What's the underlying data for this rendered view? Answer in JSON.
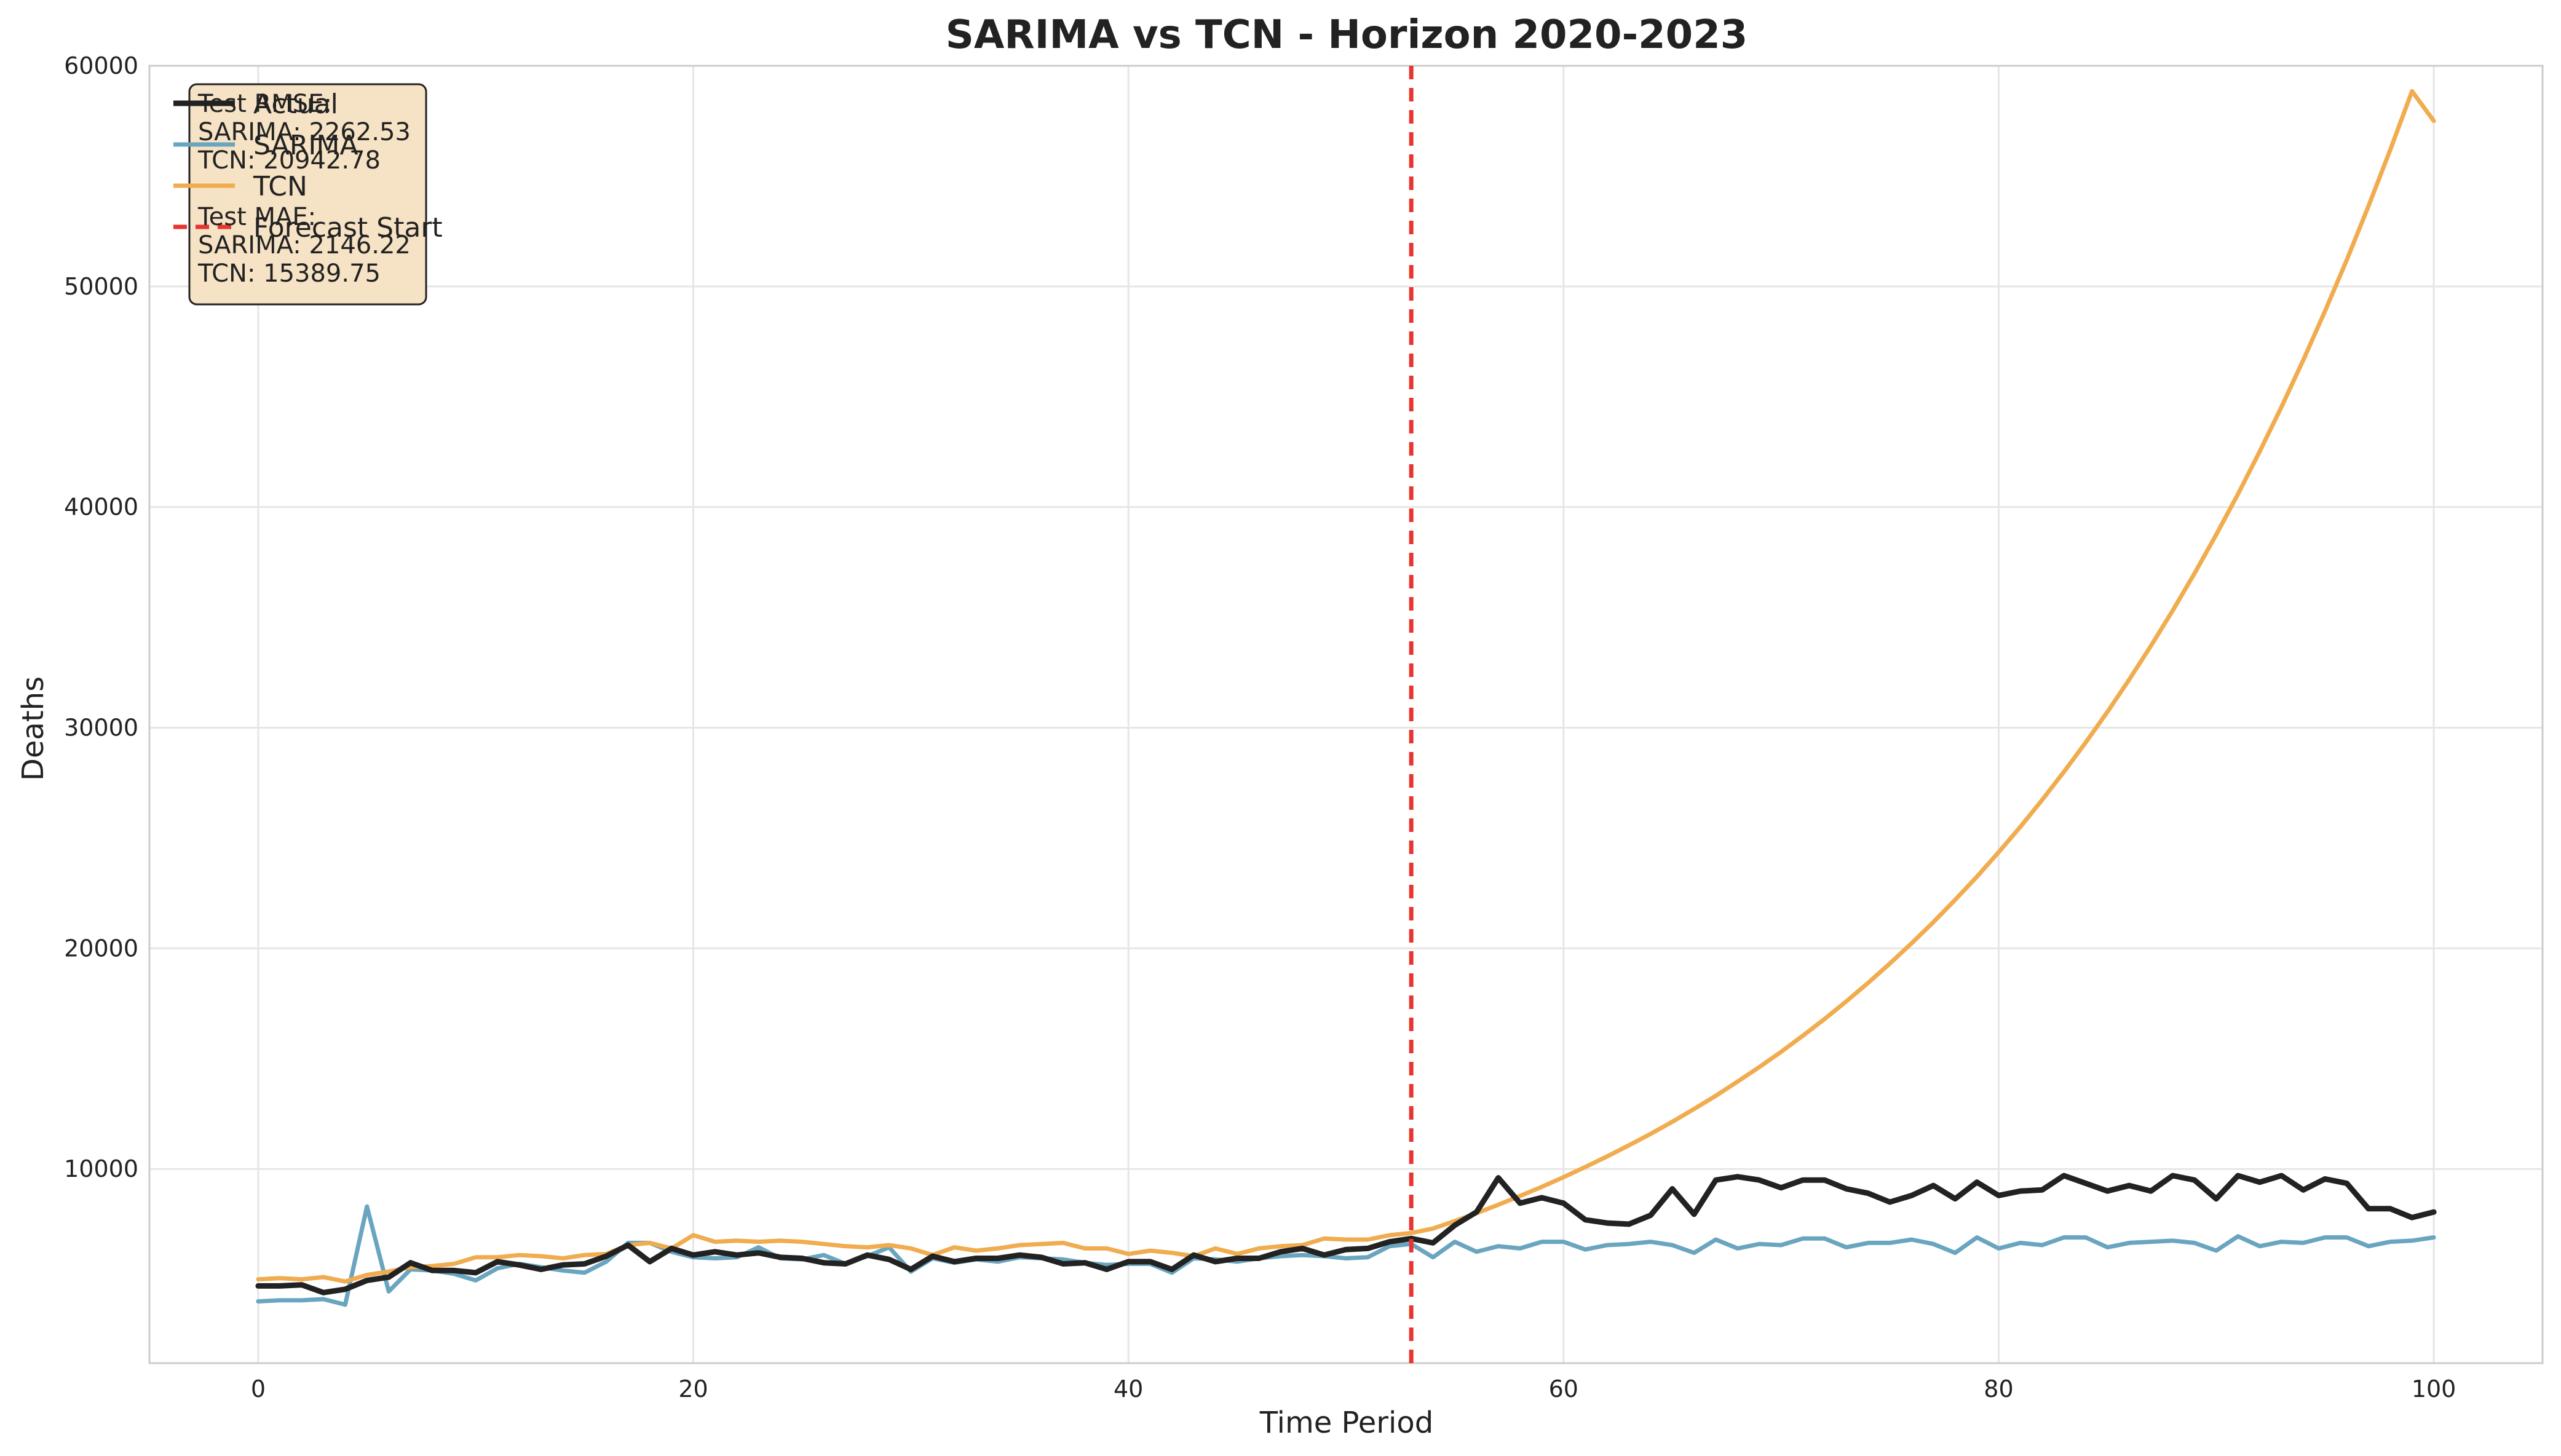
{
  "chart_data": {
    "type": "line",
    "title": "SARIMA vs TCN - Horizon 2020-2023",
    "xlabel": "Time Period",
    "ylabel": "Deaths",
    "xlim": [
      -5,
      105
    ],
    "ylim": [
      1200,
      60000
    ],
    "xticks": [
      "0",
      "20",
      "40",
      "60",
      "80",
      "100"
    ],
    "yticks": [
      "10000",
      "20000",
      "30000",
      "40000",
      "50000",
      "60000"
    ],
    "grid": true,
    "legend_position": "upper-left",
    "forecast_start": 53,
    "legend": [
      "Actual",
      "SARIMA",
      "TCN",
      "Forecast Start"
    ],
    "annotation": [
      "Test RMSE:",
      "SARIMA: 2262.53",
      "TCN: 20942.78",
      "",
      "Test MAE:",
      "SARIMA: 2146.22",
      "TCN: 15389.75"
    ],
    "series": [
      {
        "name": "Actual",
        "color": "#222222",
        "values": [
          4700,
          4700,
          4750,
          4400,
          4550,
          4950,
          5100,
          5750,
          5400,
          5400,
          5300,
          5800,
          5650,
          5450,
          5650,
          5700,
          6050,
          6550,
          5800,
          6400,
          6100,
          6250,
          6100,
          6200,
          6000,
          5950,
          5750,
          5700,
          6100,
          5900,
          5450,
          6050,
          5800,
          5950,
          5950,
          6100,
          6000,
          5700,
          5750,
          5450,
          5800,
          5800,
          5450,
          6100,
          5800,
          5950,
          5950,
          6250,
          6400,
          6100,
          6350,
          6400,
          6700,
          6850,
          6650,
          7450,
          8050,
          9600,
          8450,
          8700,
          8450,
          7700,
          7550,
          7500,
          7900,
          9100,
          7950,
          9500,
          9650,
          9500,
          9150,
          9500,
          9500,
          9100,
          8900,
          8500,
          8800,
          9250,
          8650,
          9400,
          8800,
          9000,
          9050,
          9700,
          9350,
          9000,
          9250,
          9000,
          9700,
          9500,
          8650,
          9700,
          9400,
          9700,
          9050,
          9550,
          9350,
          8200,
          8200,
          7800,
          8050
        ]
      },
      {
        "name": "SARIMA",
        "color": "#6aa5bf",
        "values": [
          4000,
          4050,
          4050,
          4100,
          3850,
          8300,
          4450,
          5450,
          5400,
          5250,
          4950,
          5500,
          5700,
          5550,
          5400,
          5300,
          5800,
          6650,
          6650,
          6250,
          6000,
          5950,
          6000,
          6450,
          5950,
          5900,
          6100,
          5700,
          6050,
          6450,
          5350,
          5950,
          5750,
          5900,
          5800,
          6000,
          5950,
          5900,
          5750,
          5650,
          5700,
          5700,
          5300,
          5950,
          5900,
          5800,
          5950,
          6050,
          6100,
          6050,
          5950,
          6000,
          6500,
          6600,
          6000,
          6700,
          6250,
          6500,
          6400,
          6700,
          6700,
          6350,
          6550,
          6600,
          6700,
          6550,
          6200,
          6800,
          6400,
          6600,
          6550,
          6850,
          6850,
          6450,
          6650,
          6650,
          6800,
          6600,
          6200,
          6900,
          6400,
          6650,
          6550,
          6900,
          6900,
          6450,
          6650,
          6700,
          6750,
          6650,
          6300,
          6950,
          6500,
          6700,
          6650,
          6900,
          6900,
          6500,
          6700,
          6750,
          6900
        ]
      },
      {
        "name": "TCN",
        "color": "#f0ac4e",
        "values": [
          5000,
          5050,
          5000,
          5100,
          4900,
          5200,
          5350,
          5550,
          5600,
          5700,
          6000,
          6000,
          6100,
          6050,
          5950,
          6100,
          6150,
          6550,
          6650,
          6400,
          7000,
          6700,
          6750,
          6700,
          6750,
          6700,
          6600,
          6500,
          6450,
          6550,
          6400,
          6100,
          6450,
          6300,
          6400,
          6550,
          6600,
          6650,
          6400,
          6400,
          6150,
          6300,
          6200,
          6050,
          6400,
          6150,
          6400,
          6500,
          6550,
          6850,
          6800,
          6800,
          7000,
          7100,
          7300,
          7640,
          8000,
          8380,
          8780,
          9190,
          9630,
          10090,
          10570,
          11070,
          11590,
          12140,
          12720,
          13320,
          13960,
          14620,
          15310,
          16040,
          16800,
          17600,
          18440,
          19310,
          20230,
          21190,
          22200,
          23250,
          24360,
          25510,
          26730,
          28000,
          29330,
          30720,
          32180,
          33710,
          35310,
          36990,
          38750,
          40590,
          42520,
          44540,
          46660,
          48880,
          51200,
          53640,
          56190,
          58850,
          57500
        ]
      }
    ]
  }
}
